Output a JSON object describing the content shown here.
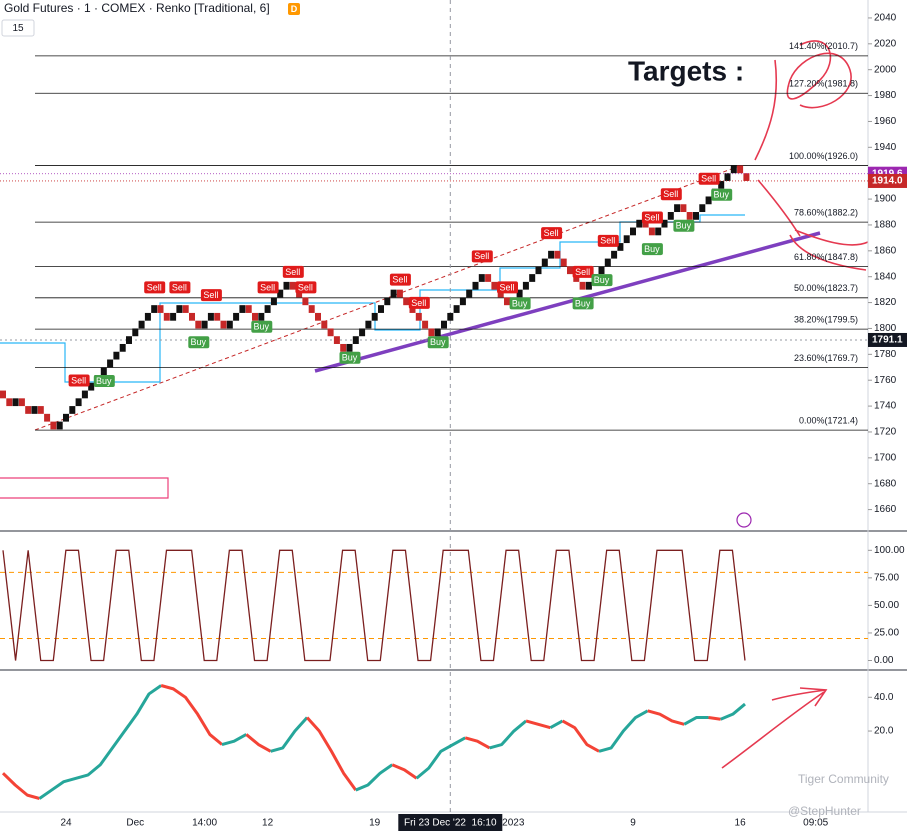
{
  "header": {
    "symbol": "Gold Futures · 1 · COMEX · Renko [Traditional, 6]",
    "badge": "D",
    "interval": "15"
  },
  "watermark": {
    "brand": "Tiger Community",
    "author": "@StepHunter"
  },
  "annotation": "Targets :",
  "chart_data": [
    {
      "type": "renko",
      "ylim": [
        1645,
        2050
      ],
      "yticks": [
        1660,
        1680,
        1700,
        1720,
        1740,
        1760,
        1780,
        1800,
        1820,
        1840,
        1860,
        1880,
        1900,
        1920,
        1940,
        1960,
        1980,
        2000,
        2020,
        2040
      ],
      "xticks": [
        {
          "value": 10,
          "label": "24"
        },
        {
          "value": 21,
          "label": "Dec"
        },
        {
          "value": 32,
          "label": "14:00"
        },
        {
          "value": 42,
          "label": "12"
        },
        {
          "value": 59,
          "label": "19"
        },
        {
          "value": 81,
          "label": "2023"
        },
        {
          "value": 100,
          "label": "9"
        },
        {
          "value": 117,
          "label": "16"
        },
        {
          "value": 129,
          "label": "09:05"
        }
      ],
      "crosshair": {
        "x": 71,
        "label": "Fri 23 Dec '22  16:10",
        "price": {
          "value": 1791.1,
          "label": "1791.1"
        }
      },
      "price_labels": [
        {
          "value": 1919.6,
          "label": "1919.6",
          "color": "#9c27b0"
        },
        {
          "value": 1914,
          "label": "1914.0",
          "color": "#c62828"
        }
      ],
      "fib_levels": [
        {
          "label": "141.40%(2010.7)",
          "value": 2010.7
        },
        {
          "label": "127.20%(1981.8)",
          "value": 1981.8
        },
        {
          "label": "100.00%(1926.0)",
          "value": 1926.0
        },
        {
          "label": "78.60%(1882.2)",
          "value": 1882.2
        },
        {
          "label": "61.80%(1847.8)",
          "value": 1847.8
        },
        {
          "label": "50.00%(1823.7)",
          "value": 1823.7
        },
        {
          "label": "38.20%(1799.5)",
          "value": 1799.5
        },
        {
          "label": "23.60%(1769.7)",
          "value": 1769.7
        },
        {
          "label": "0.00%(1721.4)",
          "value": 1721.4
        }
      ],
      "up_color": "#111111",
      "down_color": "#c62828",
      "values": [
        1746,
        1740,
        1746,
        1740,
        1734,
        1740,
        1734,
        1728,
        1722,
        1728,
        1734,
        1740,
        1746,
        1752,
        1758,
        1764,
        1770,
        1776,
        1782,
        1788,
        1794,
        1800,
        1806,
        1812,
        1818,
        1812,
        1806,
        1812,
        1818,
        1812,
        1806,
        1800,
        1806,
        1812,
        1806,
        1800,
        1806,
        1812,
        1818,
        1812,
        1806,
        1812,
        1818,
        1824,
        1830,
        1836,
        1830,
        1824,
        1818,
        1812,
        1806,
        1800,
        1794,
        1788,
        1782,
        1788,
        1794,
        1800,
        1806,
        1812,
        1818,
        1824,
        1830,
        1824,
        1818,
        1812,
        1806,
        1800,
        1794,
        1800,
        1806,
        1812,
        1818,
        1824,
        1830,
        1836,
        1842,
        1836,
        1830,
        1824,
        1818,
        1824,
        1830,
        1836,
        1842,
        1848,
        1854,
        1860,
        1854,
        1848,
        1842,
        1836,
        1830,
        1836,
        1842,
        1848,
        1854,
        1860,
        1866,
        1872,
        1878,
        1884,
        1878,
        1872,
        1878,
        1884,
        1890,
        1896,
        1890,
        1884,
        1890,
        1896,
        1902,
        1908,
        1914,
        1920,
        1926,
        1920,
        1914
      ],
      "signals": [
        {
          "label": "Sell",
          "x": 12
        },
        {
          "label": "Buy",
          "x": 16
        },
        {
          "label": "Sell",
          "x": 24
        },
        {
          "label": "Sell",
          "x": 28
        },
        {
          "label": "Sell",
          "x": 33
        },
        {
          "label": "Buy",
          "x": 31
        },
        {
          "label": "Sell",
          "x": 42
        },
        {
          "label": "Buy",
          "x": 41
        },
        {
          "label": "Sell",
          "x": 46
        },
        {
          "label": "Sell",
          "x": 48
        },
        {
          "label": "Buy",
          "x": 55
        },
        {
          "label": "Sell",
          "x": 63
        },
        {
          "label": "Sell",
          "x": 66
        },
        {
          "label": "Buy",
          "x": 69
        },
        {
          "label": "Sell",
          "x": 76
        },
        {
          "label": "Sell",
          "x": 80
        },
        {
          "label": "Buy",
          "x": 82
        },
        {
          "label": "Sell",
          "x": 87
        },
        {
          "label": "Buy",
          "x": 92
        },
        {
          "label": "Sell",
          "x": 92
        },
        {
          "label": "Sell",
          "x": 96
        },
        {
          "label": "Buy",
          "x": 95
        },
        {
          "label": "Sell",
          "x": 103
        },
        {
          "label": "Buy",
          "x": 103
        },
        {
          "label": "Sell",
          "x": 106
        },
        {
          "label": "Buy",
          "x": 108
        },
        {
          "label": "Sell",
          "x": 112
        },
        {
          "label": "Buy",
          "x": 114
        }
      ]
    },
    {
      "type": "line",
      "ylim": [
        -5,
        113
      ],
      "color": "#7b1f1f",
      "levels": [
        80,
        20
      ],
      "yticks": [
        {
          "value": 0,
          "label": "0.00"
        },
        {
          "value": 25,
          "label": "25.00"
        },
        {
          "value": 50,
          "label": "50.00"
        },
        {
          "value": 75,
          "label": "75.00"
        },
        {
          "value": 100,
          "label": "100.00"
        }
      ],
      "values": [
        100,
        0,
        100,
        0,
        0,
        100,
        100,
        0,
        0,
        100,
        100,
        0,
        0,
        100,
        100,
        100,
        0,
        0,
        100,
        100,
        0,
        0,
        100,
        100,
        0,
        0,
        0,
        100,
        100,
        0,
        0,
        100,
        100,
        0,
        0,
        100,
        100,
        100,
        0,
        0,
        100,
        100,
        0,
        0,
        100,
        100,
        0,
        0,
        100,
        100,
        0,
        0,
        100,
        100,
        100,
        0,
        0,
        100,
        100,
        0
      ]
    },
    {
      "type": "line",
      "ylim": [
        -28,
        55
      ],
      "up_color": "#26a69a",
      "down_color": "#f44336",
      "yticks": [
        {
          "value": 20,
          "label": "20.0"
        },
        {
          "value": 40,
          "label": "40.0"
        }
      ],
      "values": [
        -5,
        -12,
        -18,
        -20,
        -15,
        -10,
        -8,
        -6,
        0,
        10,
        20,
        30,
        42,
        47,
        45,
        40,
        30,
        18,
        12,
        14,
        18,
        12,
        8,
        10,
        20,
        28,
        20,
        8,
        -5,
        -15,
        -12,
        -5,
        0,
        -3,
        -8,
        -2,
        8,
        12,
        16,
        14,
        10,
        12,
        20,
        26,
        24,
        22,
        26,
        22,
        12,
        8,
        10,
        20,
        28,
        32,
        30,
        26,
        24,
        28,
        28,
        27,
        30,
        36
      ]
    }
  ]
}
